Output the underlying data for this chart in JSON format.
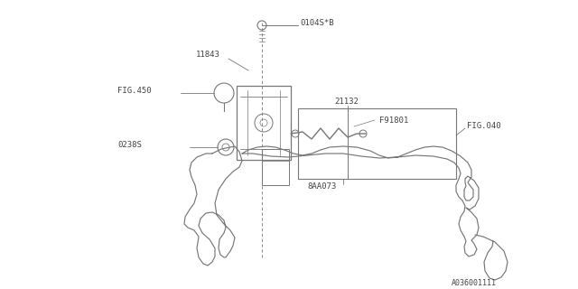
{
  "bg_color": "#ffffff",
  "line_color": "#777777",
  "text_color": "#444444",
  "diagram_id": "A036001111",
  "labels": {
    "0104S_B": "0104S*B",
    "11843": "11843",
    "FIG450": "FIG.450",
    "21132": "21132",
    "F91801": "F91801",
    "FIG040": "FIG.040",
    "8AA073": "8AA073",
    "0238S": "0238S"
  },
  "bottom_label": "A036001111",
  "fs": 6.5
}
